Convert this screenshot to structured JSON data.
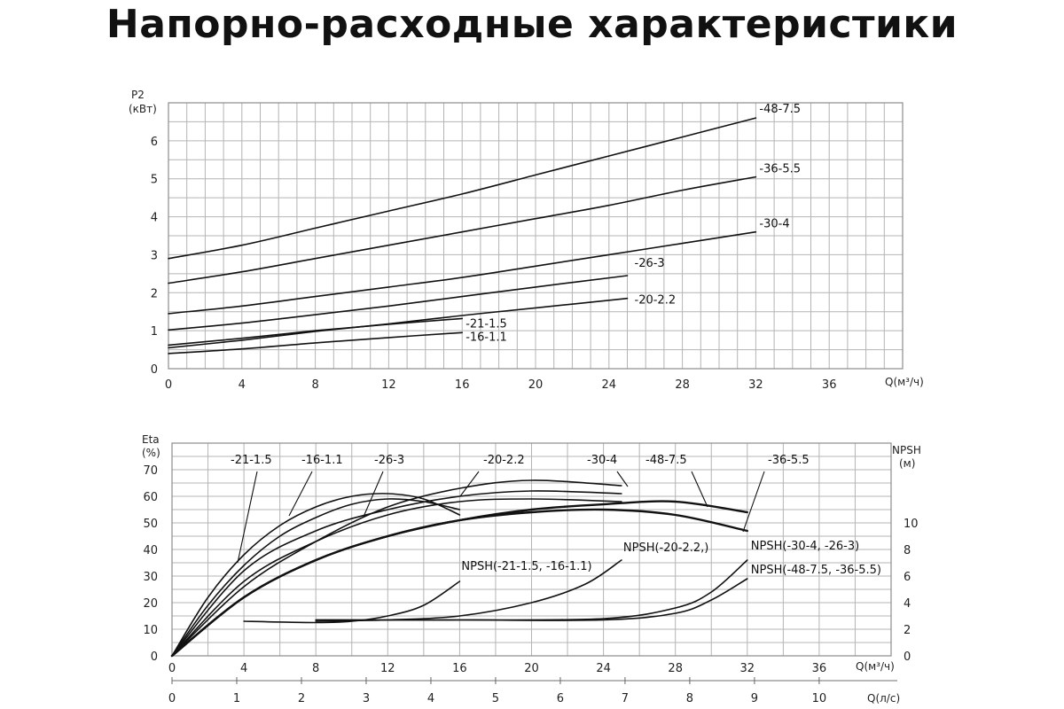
{
  "title": "Напорно-расходные характеристики",
  "chart_data": [
    {
      "type": "line",
      "ylabel_top": "P2",
      "ylabel_unit": "(кВт)",
      "xlabel": "Q(м³/ч)",
      "xlim": [
        0,
        40
      ],
      "ylim": [
        0,
        7
      ],
      "x_ticks": [
        "0",
        "4",
        "8",
        "12",
        "16",
        "20",
        "24",
        "28",
        "32",
        "36"
      ],
      "y_ticks": [
        "0",
        "1",
        "2",
        "3",
        "4",
        "5",
        "6"
      ],
      "grid": true,
      "series": [
        {
          "name": "-48-7.5",
          "x": [
            0,
            4,
            8,
            12,
            16,
            20,
            24,
            28,
            32
          ],
          "y": [
            2.9,
            3.25,
            3.7,
            4.15,
            4.6,
            5.1,
            5.6,
            6.1,
            6.6
          ]
        },
        {
          "name": "-36-5.5",
          "x": [
            0,
            4,
            8,
            12,
            16,
            20,
            24,
            28,
            32
          ],
          "y": [
            2.25,
            2.55,
            2.9,
            3.25,
            3.6,
            3.95,
            4.3,
            4.7,
            5.05
          ]
        },
        {
          "name": "-30-4",
          "x": [
            0,
            4,
            8,
            12,
            16,
            20,
            24,
            28,
            32
          ],
          "y": [
            1.45,
            1.65,
            1.9,
            2.15,
            2.4,
            2.7,
            3.0,
            3.3,
            3.6
          ]
        },
        {
          "name": "-26-3",
          "x": [
            0,
            4,
            8,
            12,
            16,
            20,
            25
          ],
          "y": [
            1.02,
            1.2,
            1.42,
            1.65,
            1.9,
            2.15,
            2.45
          ]
        },
        {
          "name": "-20-2.2",
          "x": [
            0,
            4,
            8,
            12,
            16,
            20,
            25
          ],
          "y": [
            0.55,
            0.75,
            0.98,
            1.18,
            1.4,
            1.6,
            1.85
          ]
        },
        {
          "name": "-21-1.5",
          "x": [
            0,
            4,
            8,
            12,
            16
          ],
          "y": [
            0.62,
            0.8,
            1.0,
            1.17,
            1.32
          ]
        },
        {
          "name": "-16-1.1",
          "x": [
            0,
            4,
            8,
            12,
            16
          ],
          "y": [
            0.4,
            0.52,
            0.68,
            0.82,
            0.95
          ]
        }
      ]
    },
    {
      "type": "line",
      "ylabel_top": "Eta",
      "ylabel_unit": "(%)",
      "y2label_top": "NPSH",
      "y2label_unit": "(м)",
      "xlabel": "Q(м³/ч)",
      "x2label": "Q(л/с)",
      "xlim": [
        0,
        40
      ],
      "ylim": [
        0,
        80
      ],
      "y2lim": [
        0,
        16
      ],
      "x_ticks": [
        "0",
        "4",
        "8",
        "12",
        "16",
        "20",
        "24",
        "28",
        "32",
        "36"
      ],
      "y_ticks": [
        "0",
        "10",
        "20",
        "30",
        "40",
        "50",
        "60",
        "70"
      ],
      "y2_ticks": [
        "0",
        "2",
        "4",
        "6",
        "8",
        "10"
      ],
      "x2_ticks": [
        "0",
        "1",
        "2",
        "3",
        "4",
        "5",
        "6",
        "7",
        "8",
        "9",
        "10"
      ],
      "grid": true,
      "series": [
        {
          "name": "-21-1.5",
          "x": [
            0,
            2,
            4,
            6,
            8,
            10,
            12,
            14,
            16
          ],
          "y": [
            0,
            22,
            38,
            49,
            56,
            60,
            61,
            59,
            53
          ]
        },
        {
          "name": "-16-1.1",
          "x": [
            0,
            2,
            4,
            6,
            8,
            10,
            12,
            14,
            16
          ],
          "y": [
            0,
            19,
            34,
            45,
            52,
            57,
            59,
            58,
            55
          ]
        },
        {
          "name": "-26-3",
          "x": [
            0,
            4,
            8,
            12,
            16,
            20,
            25
          ],
          "y": [
            0,
            32,
            47,
            55,
            60,
            62,
            61
          ]
        },
        {
          "name": "-20-2.2",
          "x": [
            0,
            4,
            8,
            12,
            16,
            20,
            25
          ],
          "y": [
            0,
            28,
            43,
            53,
            58,
            59,
            58
          ]
        },
        {
          "name": "-30-4",
          "x": [
            0,
            4,
            8,
            12,
            16,
            20,
            25
          ],
          "y": [
            0,
            26,
            43,
            56,
            63,
            66,
            64
          ]
        },
        {
          "name": "-48-7.5",
          "x": [
            0,
            4,
            8,
            12,
            16,
            20,
            24,
            28,
            32
          ],
          "y": [
            0,
            22,
            36,
            45,
            51,
            55,
            57,
            58,
            54
          ]
        },
        {
          "name": "-36-5.5",
          "x": [
            0,
            4,
            8,
            12,
            16,
            20,
            24,
            28,
            32
          ],
          "y": [
            0,
            22,
            36,
            45,
            51,
            54,
            55,
            53,
            47
          ]
        },
        {
          "name": "NPSH(-21-1.5, -16-1.1)",
          "axis": "y2",
          "x": [
            4,
            8,
            10,
            12,
            14,
            16
          ],
          "y": [
            2.6,
            2.5,
            2.6,
            3.0,
            3.8,
            5.6
          ]
        },
        {
          "name": "NPSH(-20-2.2,)",
          "axis": "y2",
          "x": [
            8,
            12,
            16,
            20,
            23,
            25
          ],
          "y": [
            2.6,
            2.7,
            3.0,
            4.0,
            5.4,
            7.2
          ]
        },
        {
          "name": "NPSH(-30-4, -26-3)",
          "axis": "y2",
          "x": [
            8,
            16,
            24,
            28,
            30,
            32
          ],
          "y": [
            2.7,
            2.7,
            2.8,
            3.6,
            4.8,
            7.2
          ]
        },
        {
          "name": "NPSH(-48-7.5, -36-5.5)",
          "axis": "y2",
          "x": [
            8,
            16,
            24,
            28,
            30,
            32
          ],
          "y": [
            2.7,
            2.7,
            2.7,
            3.2,
            4.2,
            5.8
          ]
        }
      ]
    }
  ]
}
